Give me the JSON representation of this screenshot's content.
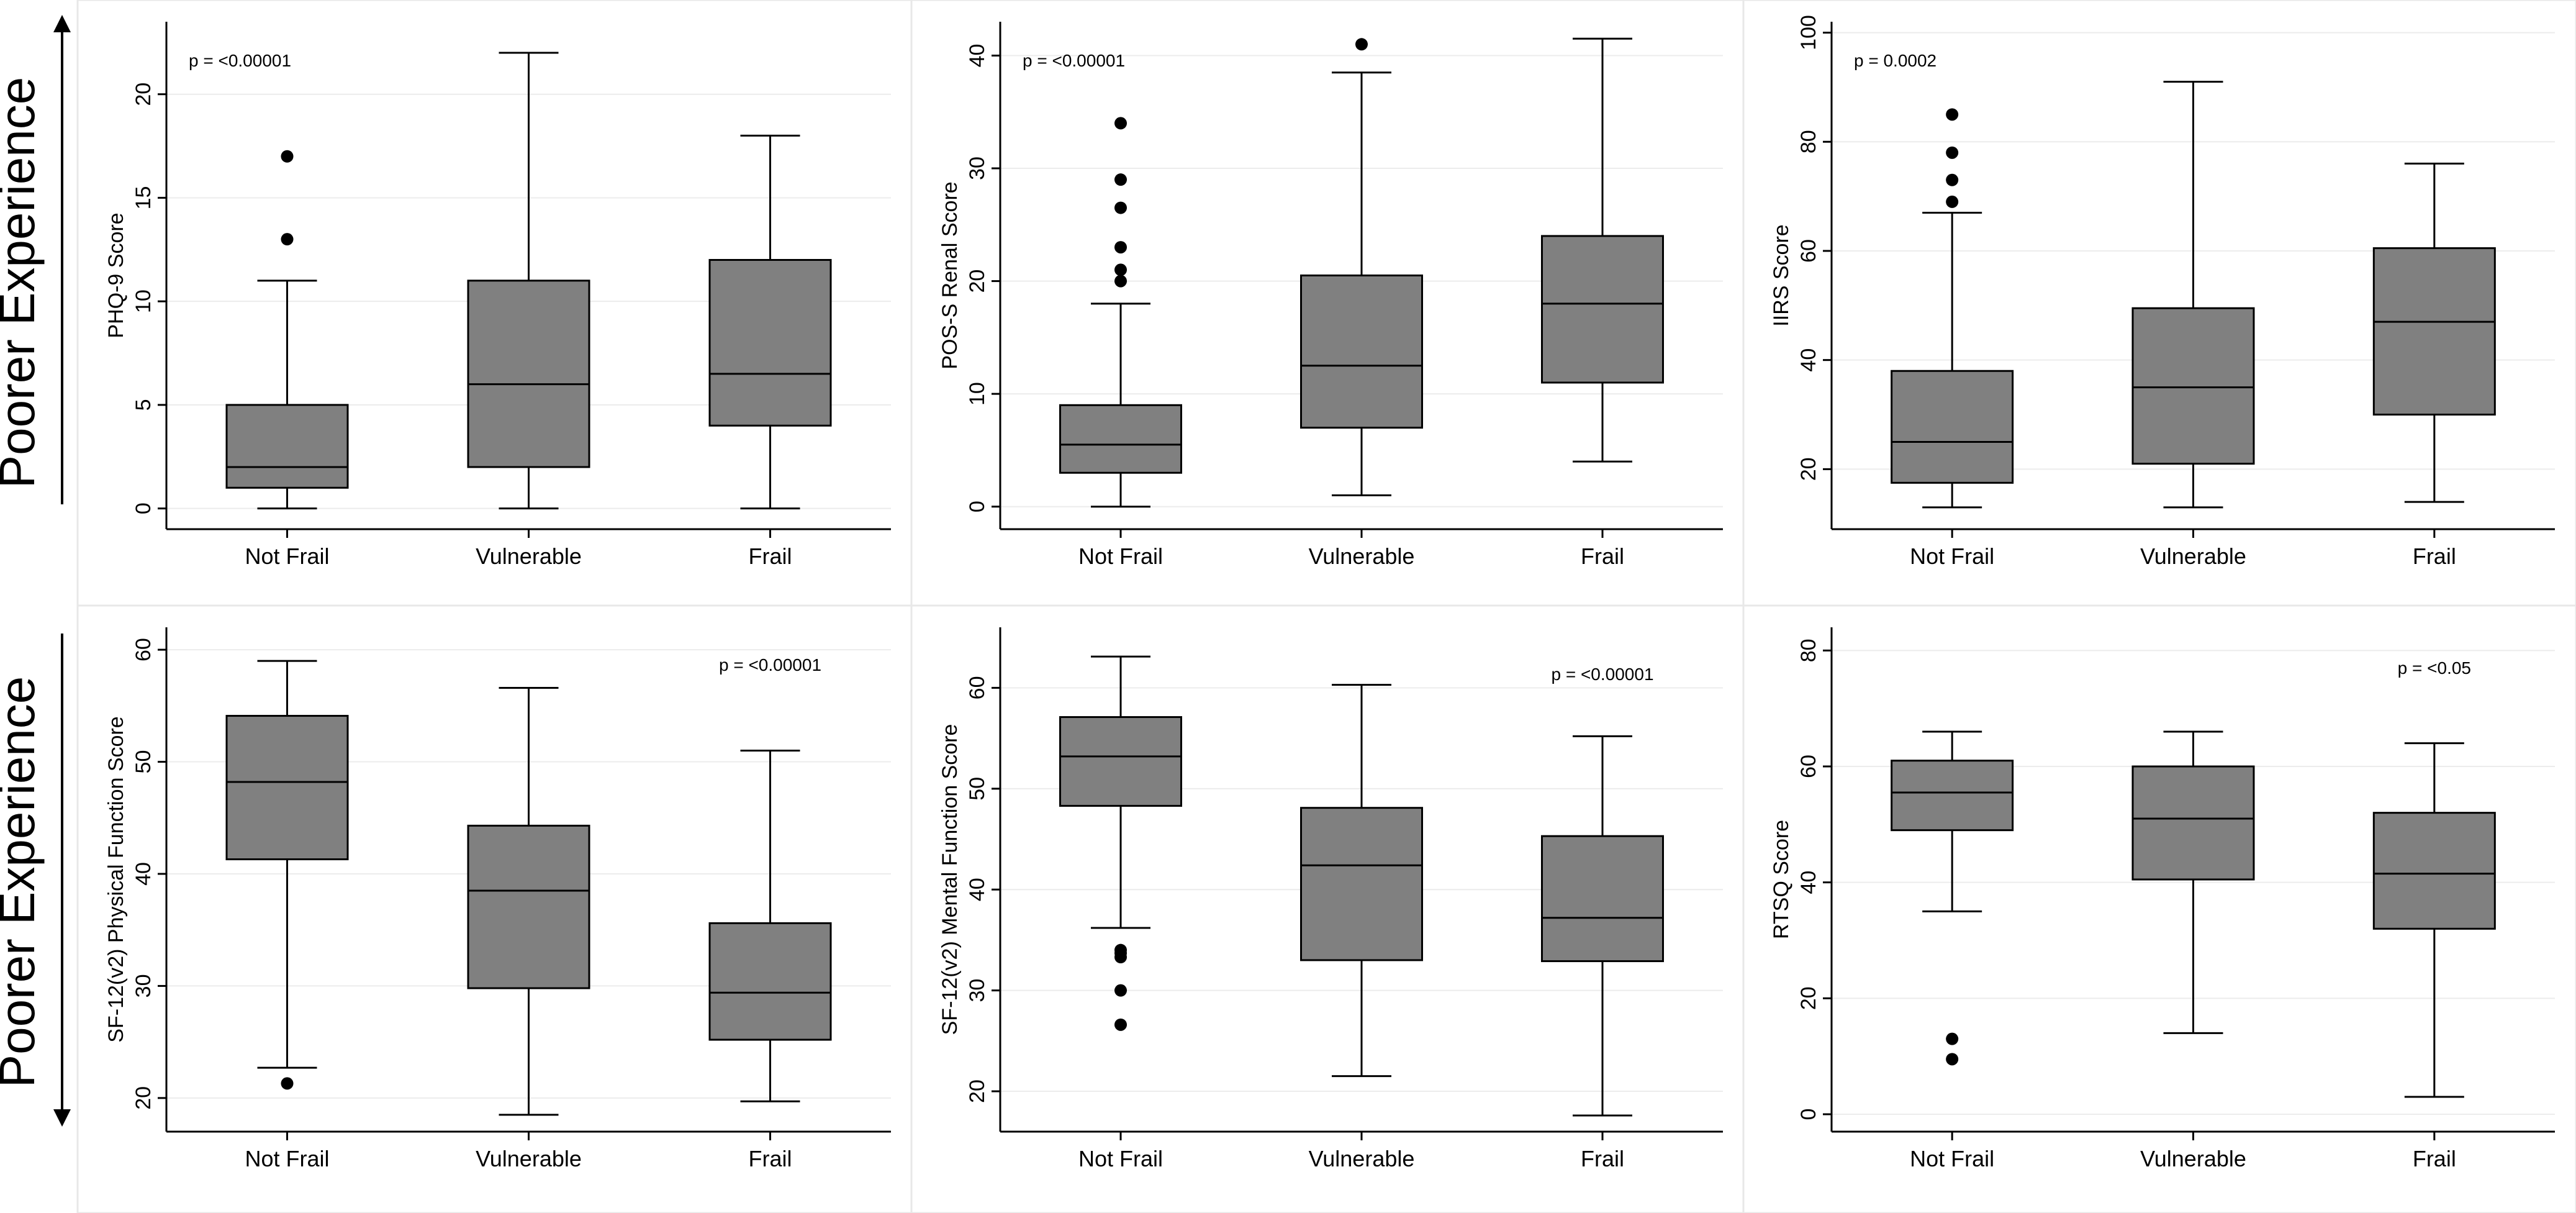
{
  "side_labels": [
    "Poorer Experience",
    "Poorer Experience"
  ],
  "chart_data": [
    {
      "type": "box",
      "ylabel": "PHQ-9 Score",
      "ylim": [
        -1,
        23.5
      ],
      "yticks": [
        0,
        5,
        10,
        15,
        20
      ],
      "pvalue": "p = <0.00001",
      "pvalue_position": "top-left",
      "categories": [
        "Not Frail",
        "Vulnerable",
        "Frail"
      ],
      "boxes": [
        {
          "category": "Not Frail",
          "min": 0,
          "q1": 1,
          "median": 2,
          "q3": 5,
          "max": 11,
          "outliers": [
            13,
            17
          ]
        },
        {
          "category": "Vulnerable",
          "min": 0,
          "q1": 2,
          "median": 6,
          "q3": 11,
          "max": 22,
          "outliers": []
        },
        {
          "category": "Frail",
          "min": 0,
          "q1": 4,
          "median": 6.5,
          "q3": 12,
          "max": 18,
          "outliers": []
        }
      ]
    },
    {
      "type": "box",
      "ylabel": "POS-S Renal Score",
      "ylim": [
        -2,
        43
      ],
      "yticks": [
        0,
        10,
        20,
        30,
        40
      ],
      "pvalue": "p = <0.00001",
      "pvalue_position": "top-left",
      "categories": [
        "Not Frail",
        "Vulnerable",
        "Frail"
      ],
      "boxes": [
        {
          "category": "Not Frail",
          "min": 0,
          "q1": 3,
          "median": 5.5,
          "q3": 9,
          "max": 18,
          "outliers": [
            20,
            21,
            23,
            26.5,
            29,
            34
          ]
        },
        {
          "category": "Vulnerable",
          "min": 1,
          "q1": 7,
          "median": 12.5,
          "q3": 20.5,
          "max": 38.5,
          "outliers": [
            41
          ]
        },
        {
          "category": "Frail",
          "min": 4,
          "q1": 11,
          "median": 18,
          "q3": 24,
          "max": 41.5,
          "outliers": []
        }
      ]
    },
    {
      "type": "box",
      "ylabel": "IIRS Score",
      "ylim": [
        9,
        102
      ],
      "yticks": [
        20,
        40,
        60,
        80,
        100
      ],
      "pvalue": "p = 0.0002",
      "pvalue_position": "top-left",
      "categories": [
        "Not Frail",
        "Vulnerable",
        "Frail"
      ],
      "boxes": [
        {
          "category": "Not Frail",
          "min": 13,
          "q1": 17.5,
          "median": 25,
          "q3": 38,
          "max": 67,
          "outliers": [
            69,
            73,
            78,
            85
          ]
        },
        {
          "category": "Vulnerable",
          "min": 13,
          "q1": 21,
          "median": 35,
          "q3": 49.5,
          "max": 91,
          "outliers": []
        },
        {
          "category": "Frail",
          "min": 14,
          "q1": 30,
          "median": 47,
          "q3": 60.5,
          "max": 76,
          "outliers": []
        }
      ]
    },
    {
      "type": "box",
      "ylabel": "SF-12(v2) Physical Function Score",
      "ylim": [
        17,
        62
      ],
      "yticks": [
        20,
        30,
        40,
        50,
        60
      ],
      "pvalue": "p = <0.00001",
      "pvalue_position": "top-right",
      "categories": [
        "Not Frail",
        "Vulnerable",
        "Frail"
      ],
      "boxes": [
        {
          "category": "Not Frail",
          "min": 22.7,
          "q1": 41.3,
          "median": 48.2,
          "q3": 54.1,
          "max": 59,
          "outliers": [
            21.3
          ]
        },
        {
          "category": "Vulnerable",
          "min": 18.5,
          "q1": 29.8,
          "median": 38.5,
          "q3": 44.3,
          "max": 56.6,
          "outliers": []
        },
        {
          "category": "Frail",
          "min": 19.7,
          "q1": 25.2,
          "median": 29.4,
          "q3": 35.6,
          "max": 51,
          "outliers": []
        }
      ]
    },
    {
      "type": "box",
      "ylabel": "SF-12(v2) Mental Function Score",
      "ylim": [
        16,
        66
      ],
      "yticks": [
        20,
        30,
        40,
        50,
        60
      ],
      "pvalue": "p = <0.00001",
      "pvalue_position": "top-right",
      "categories": [
        "Not Frail",
        "Vulnerable",
        "Frail"
      ],
      "boxes": [
        {
          "category": "Not Frail",
          "min": 36.2,
          "q1": 48.3,
          "median": 53.2,
          "q3": 57.1,
          "max": 63.1,
          "outliers": [
            26.6,
            30,
            33.3,
            33.7,
            34
          ]
        },
        {
          "category": "Vulnerable",
          "min": 21.5,
          "q1": 33,
          "median": 42.4,
          "q3": 48.1,
          "max": 60.3,
          "outliers": []
        },
        {
          "category": "Frail",
          "min": 17.6,
          "q1": 32.9,
          "median": 37.2,
          "q3": 45.3,
          "max": 55.2,
          "outliers": []
        }
      ]
    },
    {
      "type": "box",
      "ylabel": "RTSQ Score",
      "ylim": [
        -3,
        84
      ],
      "yticks": [
        0,
        20,
        40,
        60,
        80
      ],
      "pvalue": "p = <0.05",
      "pvalue_position": "top-right",
      "categories": [
        "Not Frail",
        "Vulnerable",
        "Frail"
      ],
      "boxes": [
        {
          "category": "Not Frail",
          "min": 35,
          "q1": 49,
          "median": 55.5,
          "q3": 61,
          "max": 66,
          "outliers": [
            9.5,
            13
          ]
        },
        {
          "category": "Vulnerable",
          "min": 14,
          "q1": 40.5,
          "median": 51,
          "q3": 60,
          "max": 66,
          "outliers": []
        },
        {
          "category": "Frail",
          "min": 3,
          "q1": 32,
          "median": 41.5,
          "q3": 52,
          "max": 64,
          "outliers": []
        }
      ]
    }
  ]
}
